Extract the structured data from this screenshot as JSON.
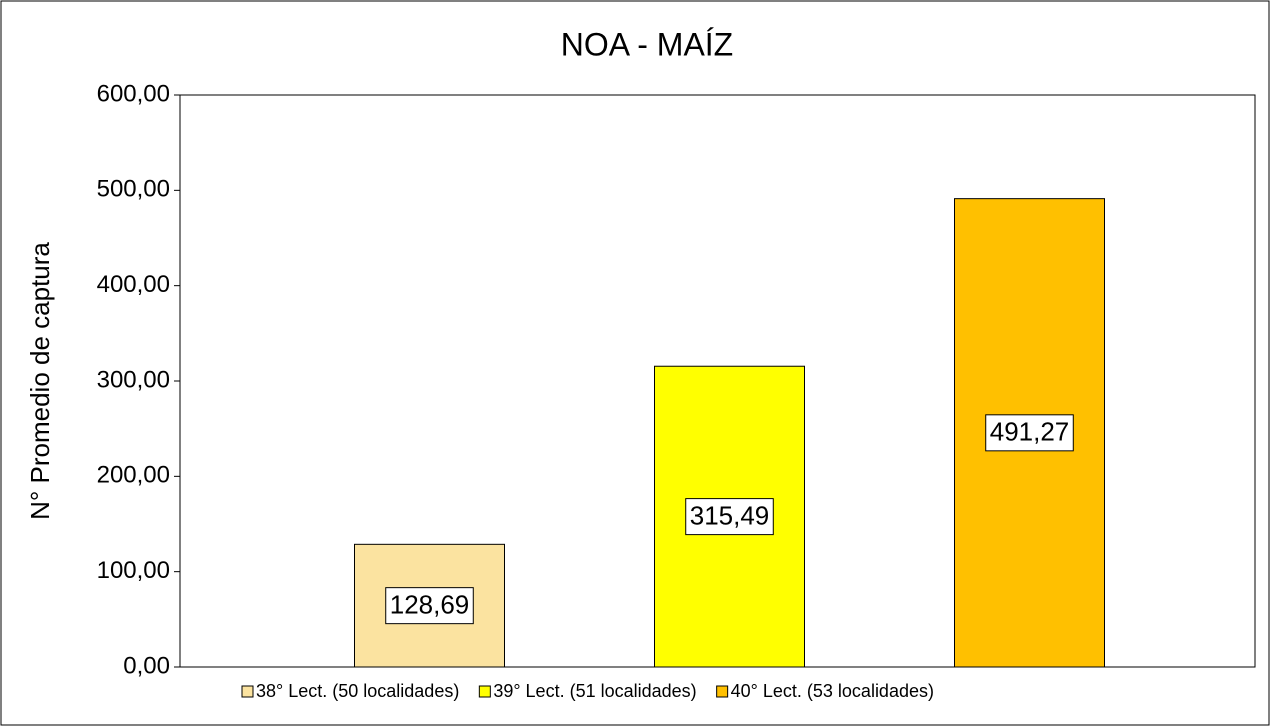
{
  "chart_data": {
    "type": "bar",
    "title": "NOA - MAÍZ",
    "y_label": "N° Promedio de captura",
    "categories": [
      null
    ],
    "series": [
      {
        "name": "38° Lect. (50 localidades)",
        "color": "#fbe3a0",
        "values": [
          128.69
        ],
        "value_labels": [
          "128,69"
        ]
      },
      {
        "name": "39° Lect. (51 localidades)",
        "color": "#ffff00",
        "values": [
          315.49
        ],
        "value_labels": [
          "315,49"
        ]
      },
      {
        "name": "40° Lect. (53 localidades)",
        "color": "#ffc000",
        "values": [
          491.27
        ],
        "value_labels": [
          "491,27"
        ]
      }
    ],
    "ylim": [
      0,
      600
    ],
    "yticks": [
      {
        "value": 0,
        "label": "0,00"
      },
      {
        "value": 100,
        "label": "100,00"
      },
      {
        "value": 200,
        "label": "200,00"
      },
      {
        "value": 300,
        "label": "300,00"
      },
      {
        "value": 400,
        "label": "400,00"
      },
      {
        "value": 500,
        "label": "500,00"
      },
      {
        "value": 600,
        "label": "600,00"
      }
    ],
    "grid": false,
    "legend": "bottom"
  }
}
